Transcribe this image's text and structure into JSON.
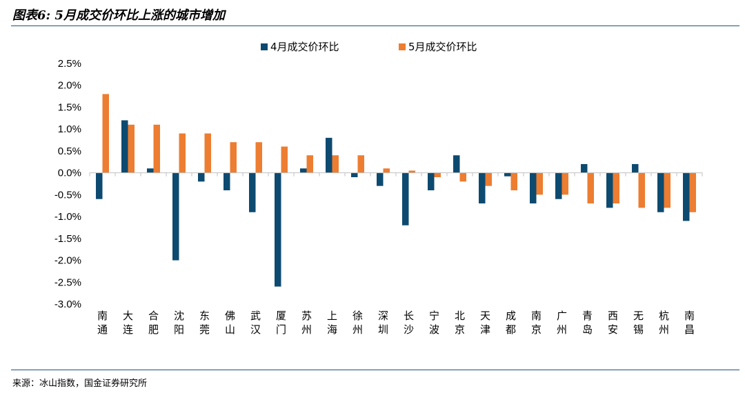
{
  "header": {
    "title": "图表6: 5月成交价环比上涨的城市增加"
  },
  "footer": {
    "source": "来源：冰山指数，国金证券研究所"
  },
  "colors": {
    "series_a": "#0d4a70",
    "series_b": "#ed7d31",
    "axis": "#bfbfbf"
  },
  "chart_data": {
    "type": "bar",
    "categories": [
      "南通",
      "大连",
      "合肥",
      "沈阳",
      "东莞",
      "佛山",
      "武汉",
      "厦门",
      "苏州",
      "上海",
      "徐州",
      "深圳",
      "长沙",
      "宁波",
      "北京",
      "天津",
      "成都",
      "南京",
      "广州",
      "青岛",
      "西安",
      "无锡",
      "杭州",
      "南昌"
    ],
    "series": [
      {
        "name": "4月成交价环比",
        "values": [
          -0.6,
          1.2,
          0.1,
          -2.0,
          -0.2,
          -0.4,
          -0.9,
          -2.6,
          0.1,
          0.8,
          -0.1,
          -0.3,
          -1.2,
          -0.4,
          0.4,
          -0.7,
          -0.08,
          -0.7,
          -0.6,
          0.2,
          -0.8,
          0.2,
          -0.9,
          -1.1
        ]
      },
      {
        "name": "5月成交价环比",
        "values": [
          1.8,
          1.1,
          1.1,
          0.9,
          0.9,
          0.7,
          0.7,
          0.6,
          0.4,
          0.4,
          0.4,
          0.1,
          0.05,
          -0.1,
          -0.2,
          -0.3,
          -0.4,
          -0.5,
          -0.5,
          -0.7,
          -0.7,
          -0.8,
          -0.8,
          -0.9
        ]
      }
    ],
    "ylim": [
      -3.0,
      2.5
    ],
    "yticks": [
      "2.5%",
      "2.0%",
      "1.5%",
      "1.0%",
      "0.5%",
      "0.0%",
      "-0.5%",
      "-1.0%",
      "-1.5%",
      "-2.0%",
      "-2.5%",
      "-3.0%"
    ],
    "legend_position": "top"
  }
}
